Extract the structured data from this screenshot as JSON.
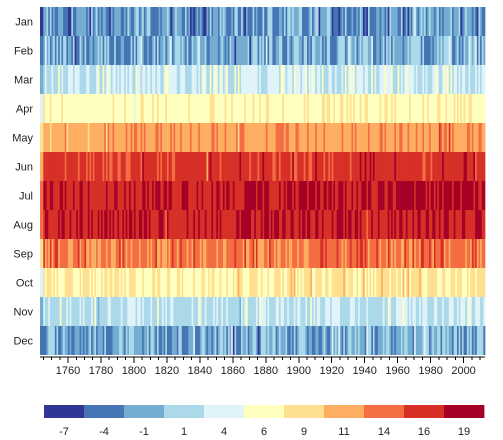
{
  "chart_data": {
    "type": "heatmap",
    "title": "",
    "xlabel": "",
    "ylabel": "",
    "x_range": [
      1743,
      2013
    ],
    "x_ticks": [
      "1760",
      "1780",
      "1800",
      "1820",
      "1840",
      "1860",
      "1880",
      "1900",
      "1920",
      "1940",
      "1960",
      "1980",
      "2000"
    ],
    "x_tick_values": [
      1760,
      1780,
      1800,
      1820,
      1840,
      1860,
      1880,
      1900,
      1920,
      1940,
      1960,
      1980,
      2000
    ],
    "rows": [
      "Jan",
      "Feb",
      "Mar",
      "Apr",
      "May",
      "Jun",
      "Jul",
      "Aug",
      "Sep",
      "Oct",
      "Nov",
      "Dec"
    ],
    "row_means": [
      -2.5,
      -1.5,
      2.5,
      6.5,
      11.5,
      15.5,
      17.5,
      17.0,
      13.0,
      7.5,
      2.0,
      -1.5
    ],
    "row_spread": [
      3.0,
      2.8,
      1.8,
      1.3,
      1.8,
      1.8,
      1.8,
      1.8,
      1.8,
      1.6,
      1.8,
      2.6
    ],
    "legend": {
      "labels": [
        "-7",
        "-4",
        "-1",
        "1",
        "4",
        "6",
        "9",
        "11",
        "14",
        "16",
        "19"
      ],
      "colors": [
        "#313695",
        "#4575b4",
        "#74add1",
        "#abd9e9",
        "#e0f3f8",
        "#ffffbf",
        "#fee090",
        "#fdae61",
        "#f46d43",
        "#d73027",
        "#a50026"
      ]
    }
  }
}
